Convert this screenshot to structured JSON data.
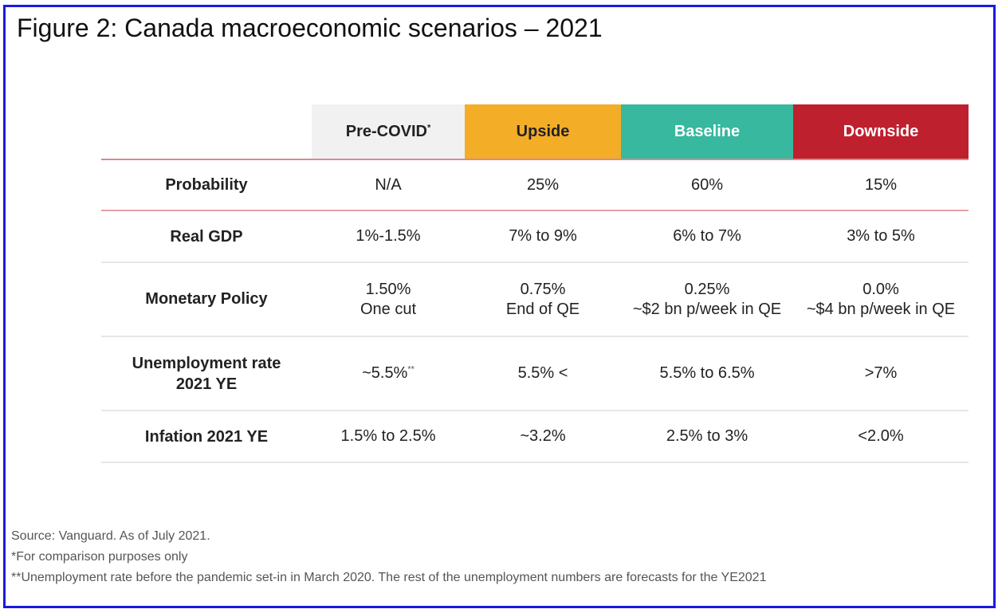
{
  "figure": {
    "title": "Figure 2: Canada macroeconomic scenarios – 2021"
  },
  "table": {
    "columns": [
      {
        "label": "",
        "marker": ""
      },
      {
        "label": "Pre-COVID",
        "marker": "*",
        "color": "#f1f1f2"
      },
      {
        "label": "Upside",
        "marker": "",
        "color": "#f3ad26"
      },
      {
        "label": "Baseline",
        "marker": "",
        "color": "#37b89f"
      },
      {
        "label": "Downside",
        "marker": "",
        "color": "#bf202e"
      }
    ],
    "rows": [
      {
        "label": "Probability",
        "cells": [
          {
            "line1": "N/A"
          },
          {
            "line1": "25%"
          },
          {
            "line1": "60%"
          },
          {
            "line1": "15%"
          }
        ]
      },
      {
        "label": "Real GDP",
        "cells": [
          {
            "line1": "1%-1.5%"
          },
          {
            "line1": "7% to 9%"
          },
          {
            "line1": "6% to 7%"
          },
          {
            "line1": "3% to 5%"
          }
        ]
      },
      {
        "label": "Monetary Policy",
        "cells": [
          {
            "line1": "1.50%",
            "line2": "One cut"
          },
          {
            "line1": "0.75%",
            "line2": "End of QE"
          },
          {
            "line1": "0.25%",
            "line2": "~$2 bn p/week in QE"
          },
          {
            "line1": "0.0%",
            "line2": "~$4 bn p/week in QE"
          }
        ]
      },
      {
        "label_line1": "Unemployment rate",
        "label_line2": "2021 YE",
        "cells": [
          {
            "line1": "~5.5%",
            "marker": "**"
          },
          {
            "line1": "5.5% <"
          },
          {
            "line1": "5.5% to 6.5%"
          },
          {
            "line1": ">7%"
          }
        ]
      },
      {
        "label": "Infation 2021 YE",
        "cells": [
          {
            "line1": "1.5% to 2.5%"
          },
          {
            "line1": "~3.2%"
          },
          {
            "line1": "2.5% to 3%"
          },
          {
            "line1": "<2.0%"
          }
        ]
      }
    ]
  },
  "notes": {
    "source": "Source: Vanguard. As of July 2021.",
    "footnote1": "*For comparison purposes only",
    "footnote2": "**Unemployment rate before the pandemic set-in in March 2020. The rest of the unemployment numbers are forecasts for the YE2021"
  }
}
